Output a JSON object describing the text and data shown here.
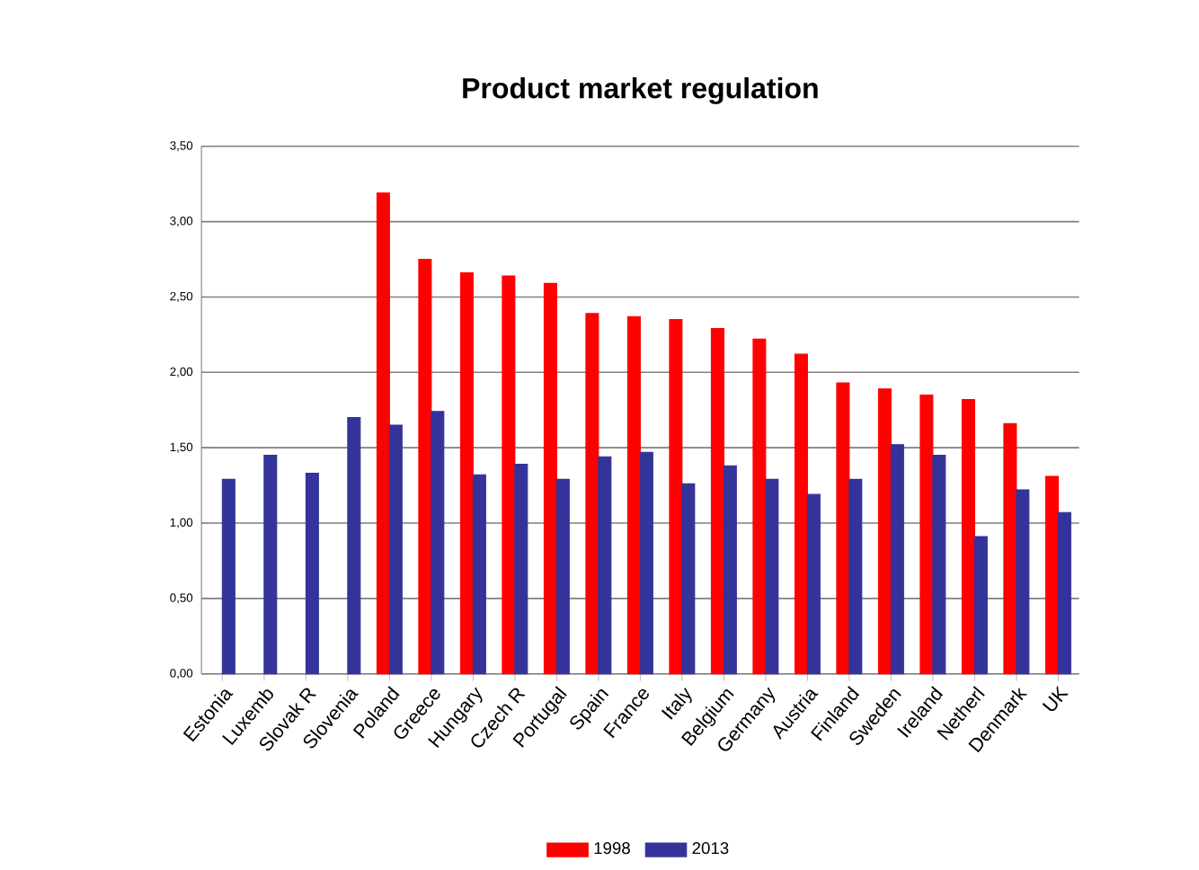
{
  "chart_data": {
    "type": "bar",
    "title": "Product market regulation",
    "categories": [
      "Estonia",
      "Luxemb",
      "Slovak R",
      "Slovenia",
      "Poland",
      "Greece",
      "Hungary",
      "Czech R",
      "Portugal",
      "Spain",
      "France",
      "Italy",
      "Belgium",
      "Germany",
      "Austria",
      "Finland",
      "Sweden",
      "Ireland",
      "Netherl",
      "Denmark",
      "UK"
    ],
    "series": [
      {
        "name": "1998",
        "color": "#ff0000",
        "values": [
          null,
          null,
          null,
          null,
          3.19,
          2.75,
          2.66,
          2.64,
          2.59,
          2.39,
          2.37,
          2.35,
          2.29,
          2.22,
          2.12,
          1.93,
          1.89,
          1.85,
          1.82,
          1.66,
          1.31
        ]
      },
      {
        "name": "2013",
        "color": "#333399",
        "values": [
          1.29,
          1.45,
          1.33,
          1.7,
          1.65,
          1.74,
          1.32,
          1.39,
          1.29,
          1.44,
          1.47,
          1.26,
          1.38,
          1.29,
          1.19,
          1.29,
          1.52,
          1.45,
          0.91,
          1.22,
          1.07
        ]
      }
    ],
    "ylim": [
      0,
      3.5
    ],
    "yticks": [
      {
        "value": 0,
        "label": "0,00"
      },
      {
        "value": 0.5,
        "label": "0,50"
      },
      {
        "value": 1,
        "label": "1,00"
      },
      {
        "value": 1.5,
        "label": "1,50"
      },
      {
        "value": 2,
        "label": "2,00"
      },
      {
        "value": 2.5,
        "label": "2,50"
      },
      {
        "value": 3,
        "label": "3,00"
      },
      {
        "value": 3.5,
        "label": "3,50"
      }
    ],
    "grid": "y",
    "legend": "bottom"
  }
}
